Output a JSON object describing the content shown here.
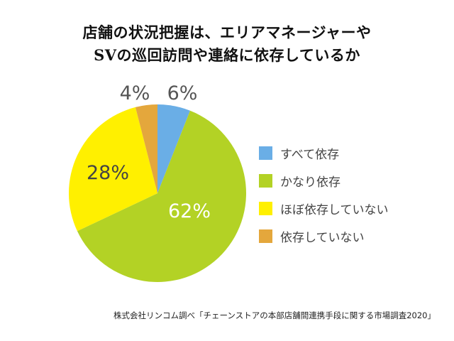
{
  "title": {
    "line1": "店舗の状況把握は、エリアマネージャーや",
    "line2": "SVの巡回訪問や連絡に依存しているか"
  },
  "chart_data": {
    "type": "pie",
    "title": "店舗の状況把握は、エリアマネージャーやSVの巡回訪問や連絡に依存しているか",
    "categories": [
      "すべて依存",
      "かなり依存",
      "ほぼ依存していない",
      "依存していない"
    ],
    "values": [
      6,
      62,
      28,
      4
    ],
    "unit": "%",
    "colors": [
      "#6aaee6",
      "#b3d225",
      "#fff000",
      "#e4a73c"
    ],
    "data_labels": [
      "6%",
      "62%",
      "28%",
      "4%"
    ],
    "start_angle": "12 o'clock, clockwise",
    "legend_position": "right"
  },
  "labels": {
    "s0": "6%",
    "s1": "62%",
    "s2": "28%",
    "s3": "4%"
  },
  "legend": [
    {
      "label": "すべて依存",
      "color": "#6aaee6"
    },
    {
      "label": "かなり依存",
      "color": "#b3d225"
    },
    {
      "label": "ほぼ依存していない",
      "color": "#fff000"
    },
    {
      "label": "依存していない",
      "color": "#e4a73c"
    }
  ],
  "source": "株式会社リンコム調べ「チェーンストアの本部店舗間連携手段に関する市場調査2020」"
}
